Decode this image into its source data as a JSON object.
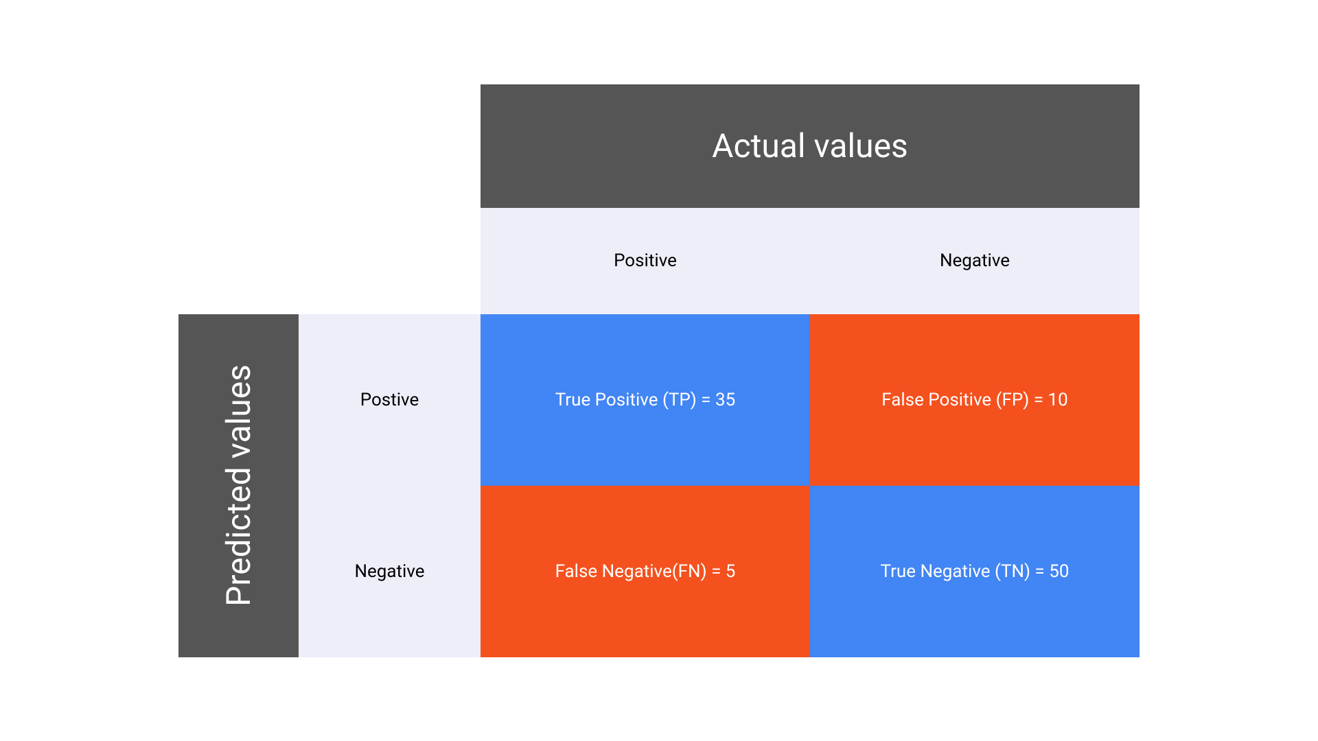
{
  "type": "confusion-matrix",
  "background_color": "#ffffff",
  "header_dark_bg": "#555555",
  "header_light_bg": "#edeef8",
  "correct_bg": "#4285f4",
  "incorrect_bg": "#f4511e",
  "header_text_color": "#ffffff",
  "subheader_text_color": "#000000",
  "value_text_color": "#ffffff",
  "header_fontsize": 48,
  "cell_fontsize": 26,
  "col_header": "Actual values",
  "row_header": "Predicted values",
  "col_labels": [
    "Positive",
    "Negative"
  ],
  "row_labels": [
    "Postive",
    "Negative"
  ],
  "cells": {
    "tp": {
      "label": "True Positive (TP) = 35",
      "value": 35,
      "bg": "#4285f4"
    },
    "fp": {
      "label": "False Positive (FP) = 10",
      "value": 10,
      "bg": "#f4511e"
    },
    "fn": {
      "label": "False Negative(FN) = 5",
      "value": 5,
      "bg": "#f4511e"
    },
    "tn": {
      "label": "True Negative (TN) = 50",
      "value": 50,
      "bg": "#4285f4"
    }
  },
  "layout": {
    "grid_cols": [
      175,
      265,
      480,
      480
    ],
    "grid_rows": [
      180,
      155,
      250,
      250
    ]
  }
}
